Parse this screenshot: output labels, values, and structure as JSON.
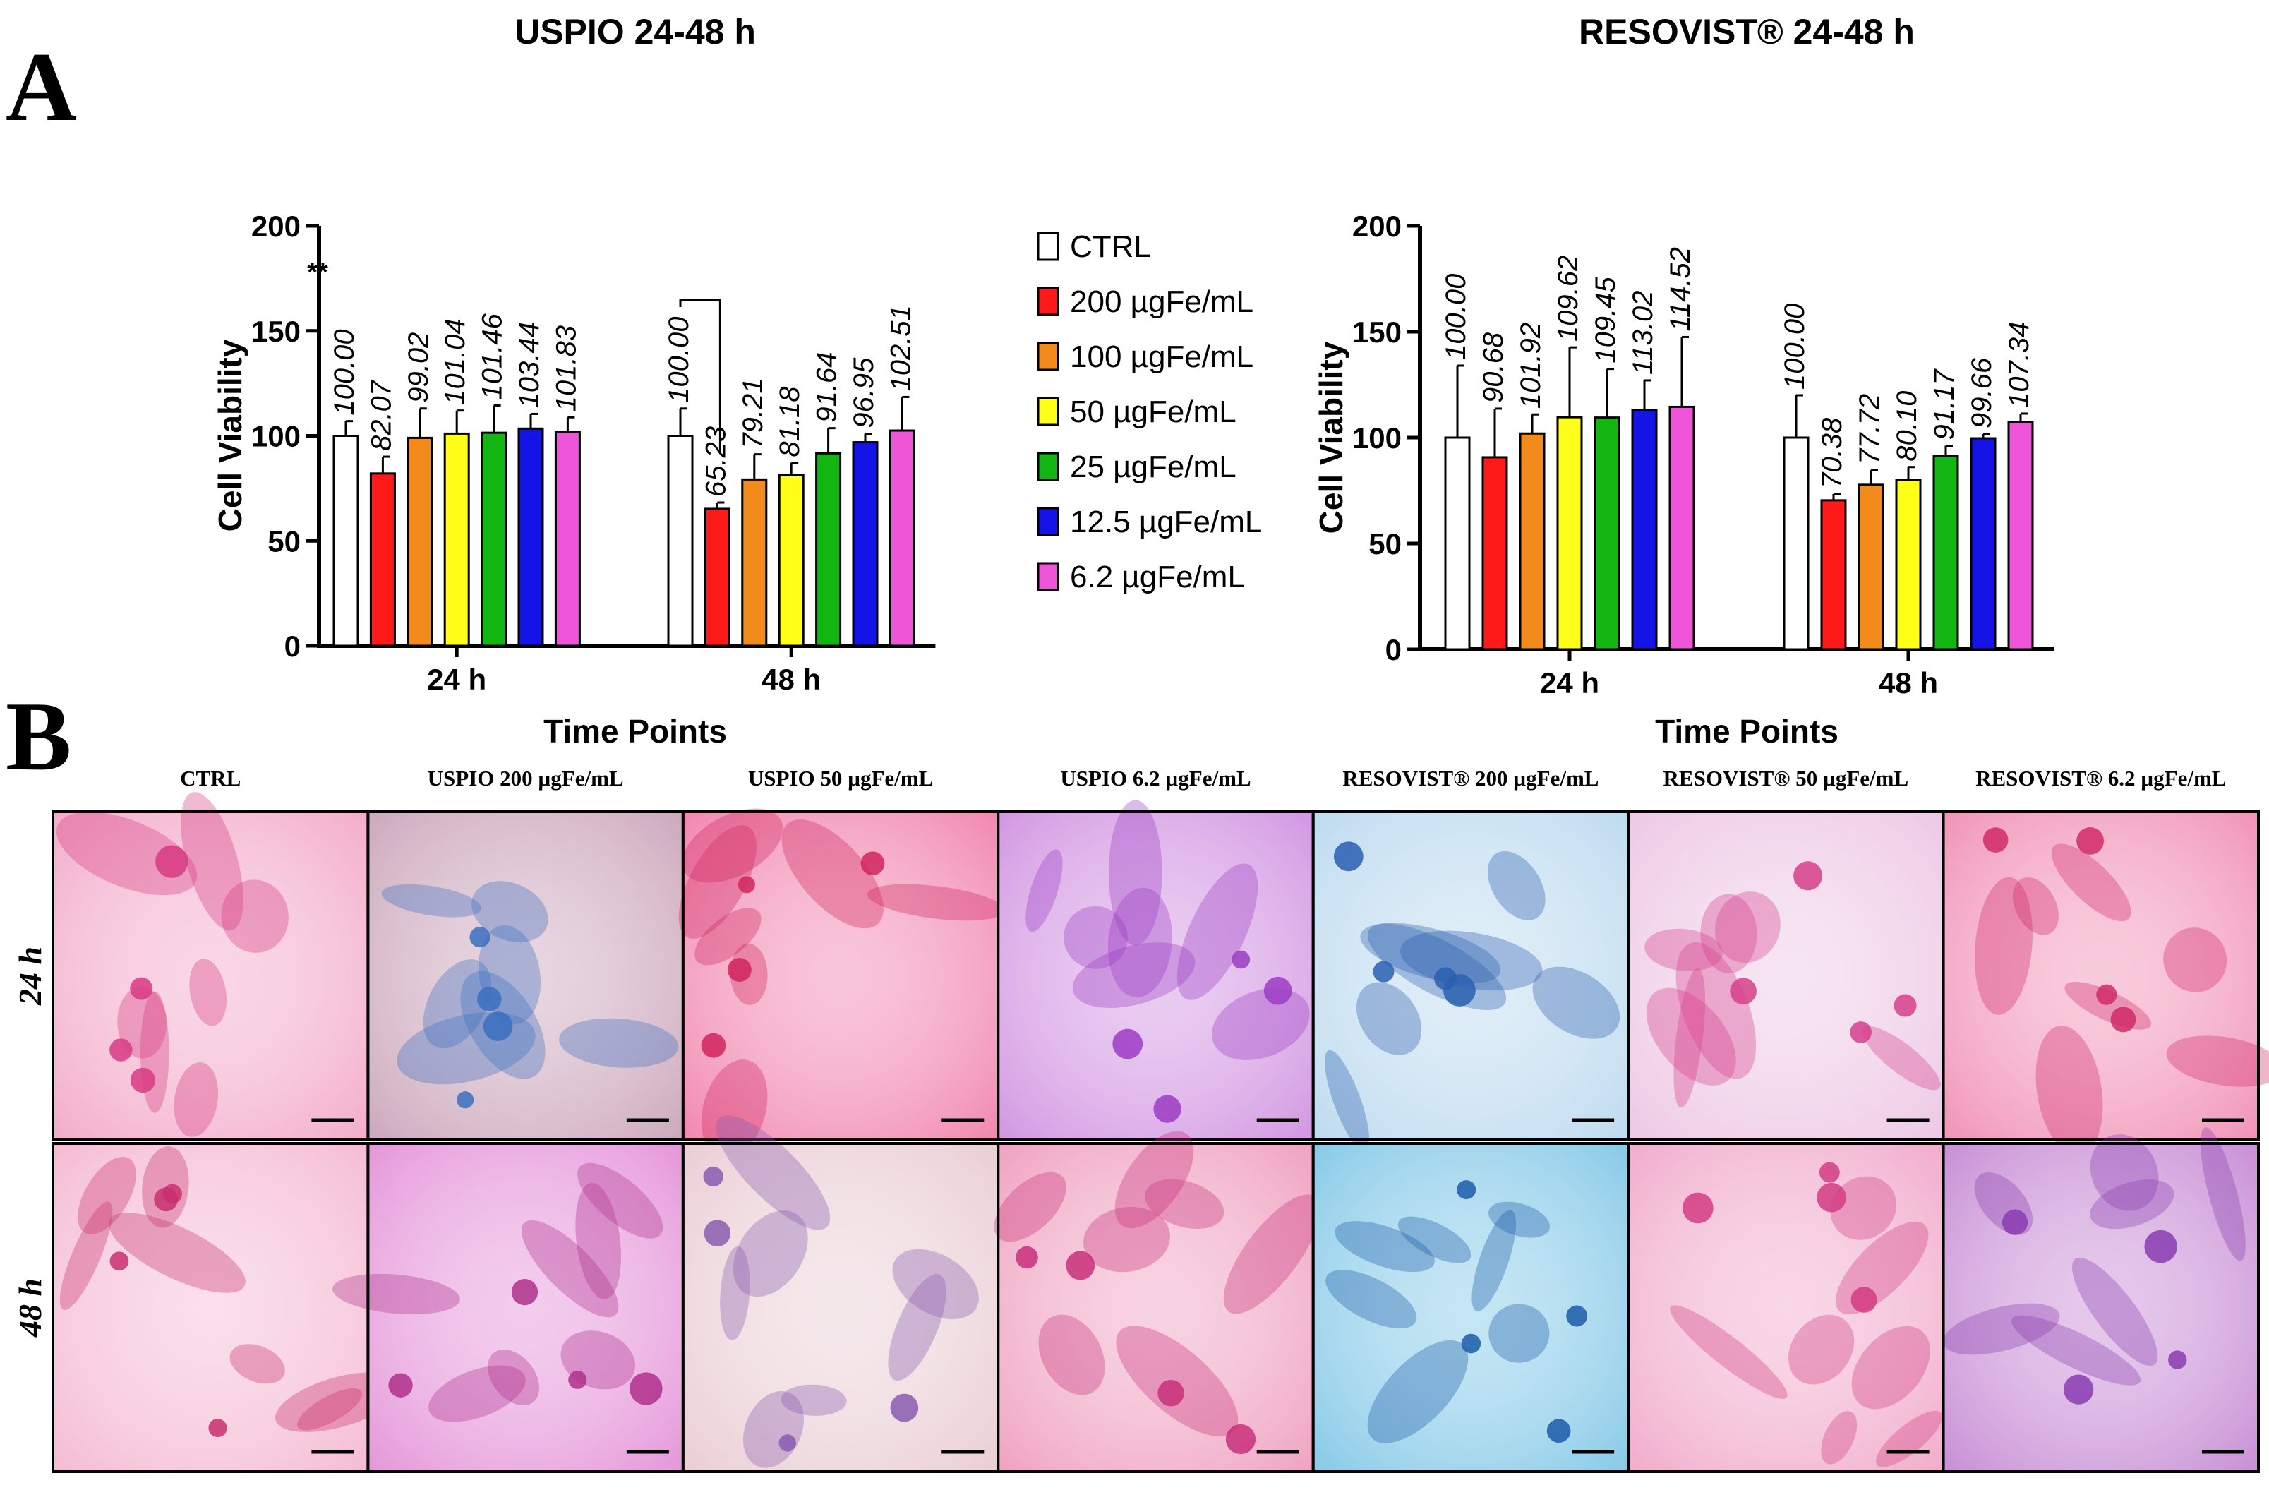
{
  "panel_a_letter": "A",
  "panel_b_letter": "B",
  "significance_label": "**",
  "chart_data": [
    {
      "type": "bar",
      "title": "USPIO 24-48 h",
      "xlabel": "Time Points",
      "ylabel": "Cell Viability",
      "categories": [
        "24 h",
        "48 h"
      ],
      "ylim": [
        0,
        200
      ],
      "yticks": [
        "0",
        "50",
        "100",
        "150",
        "200"
      ],
      "series": [
        {
          "name": "CTRL",
          "values": [
            100.0,
            100.0
          ],
          "errors": [
            7,
            13
          ],
          "labels": [
            "100.00",
            "100.00"
          ]
        },
        {
          "name": "200 µgFe/mL",
          "values": [
            82.07,
            65.23
          ],
          "errors": [
            8,
            3
          ],
          "labels": [
            "82.07",
            "65.23"
          ]
        },
        {
          "name": "100 µgFe/mL",
          "values": [
            99.02,
            79.21
          ],
          "errors": [
            14,
            12
          ],
          "labels": [
            "99.02",
            "79.21"
          ]
        },
        {
          "name": "50 µgFe/mL",
          "values": [
            101.04,
            81.18
          ],
          "errors": [
            11,
            6
          ],
          "labels": [
            "101.04",
            "81.18"
          ]
        },
        {
          "name": "25 µgFe/mL",
          "values": [
            101.46,
            91.64
          ],
          "errors": [
            13,
            12
          ],
          "labels": [
            "101.46",
            "91.64"
          ]
        },
        {
          "name": "12.5 µgFe/mL",
          "values": [
            103.44,
            96.95
          ],
          "errors": [
            7,
            4
          ],
          "labels": [
            "103.44",
            "96.95"
          ]
        },
        {
          "name": "6.2 µgFe/mL",
          "values": [
            101.83,
            102.51
          ],
          "errors": [
            7,
            16
          ],
          "labels": [
            "101.83",
            "102.51"
          ]
        }
      ]
    },
    {
      "type": "bar",
      "title": "RESOVIST® 24-48 h",
      "xlabel": "Time Points",
      "ylabel": "Cell Viability",
      "categories": [
        "24 h",
        "48 h"
      ],
      "ylim": [
        0,
        200
      ],
      "yticks": [
        "0",
        "50",
        "100",
        "150",
        "200"
      ],
      "series": [
        {
          "name": "CTRL",
          "values": [
            100.0,
            100.0
          ],
          "errors": [
            34,
            20
          ],
          "labels": [
            "100.00",
            "100.00"
          ]
        },
        {
          "name": "200 µgFe/mL",
          "values": [
            90.68,
            70.38
          ],
          "errors": [
            23,
            3
          ],
          "labels": [
            "90.68",
            "70.38"
          ]
        },
        {
          "name": "100 µgFe/mL",
          "values": [
            101.92,
            77.72
          ],
          "errors": [
            9,
            7
          ],
          "labels": [
            "101.92",
            "77.72"
          ]
        },
        {
          "name": "50 µgFe/mL",
          "values": [
            109.62,
            80.1
          ],
          "errors": [
            33,
            6
          ],
          "labels": [
            "109.62",
            "80.10"
          ]
        },
        {
          "name": "25 µgFe/mL",
          "values": [
            109.45,
            91.17
          ],
          "errors": [
            23,
            5
          ],
          "labels": [
            "109.45",
            "91.17"
          ]
        },
        {
          "name": "12.5 µgFe/mL",
          "values": [
            113.02,
            99.66
          ],
          "errors": [
            14,
            2
          ],
          "labels": [
            "113.02",
            "99.66"
          ]
        },
        {
          "name": "6.2 µgFe/mL",
          "values": [
            114.52,
            107.34
          ],
          "errors": [
            33,
            4
          ],
          "labels": [
            "114.52",
            "107.34"
          ]
        }
      ]
    }
  ],
  "legend": [
    {
      "label": "CTRL",
      "color": "#ffffff"
    },
    {
      "label": "200 µgFe/mL",
      "color": "#ff1a1a"
    },
    {
      "label": "100 µgFe/mL",
      "color": "#f28a1c"
    },
    {
      "label": "50 µgFe/mL",
      "color": "#ffff1a"
    },
    {
      "label": "25 µgFe/mL",
      "color": "#12b512"
    },
    {
      "label": "12.5 µgFe/mL",
      "color": "#1414e6"
    },
    {
      "label": "6.2 µgFe/mL",
      "color": "#ee55d8"
    }
  ],
  "micrographs": {
    "columns": [
      "CTRL",
      "USPIO 200 µgFe/mL",
      "USPIO 50 µgFe/mL",
      "USPIO 6.2 µgFe/mL",
      "RESOVIST® 200 µgFe/mL",
      "RESOVIST® 50 µgFe/mL",
      "RESOVIST® 6.2 µgFe/mL"
    ],
    "rows": [
      "24 h",
      "48 h"
    ],
    "tiles": [
      [
        "#f2a6c6",
        "#c9a2b8",
        "#f07fa8",
        "#cf8fe0",
        "#b9d8ee",
        "#ecc4e2",
        "#f08cb0"
      ],
      [
        "#f4b6d0",
        "#e38fd6",
        "#e8cbd2",
        "#ee9cbc",
        "#7ec6e6",
        "#f0a6c8",
        "#c487d2"
      ]
    ],
    "cell_colors": [
      [
        "#d83a82",
        "#3b6fc0",
        "#d0245e",
        "#9c3cc4",
        "#2a5fb0",
        "#d6408c",
        "#d02a68"
      ],
      [
        "#c8306e",
        "#b0308c",
        "#8a5cb0",
        "#c8307a",
        "#1c5ca8",
        "#d23c82",
        "#8a3cb0"
      ]
    ]
  }
}
